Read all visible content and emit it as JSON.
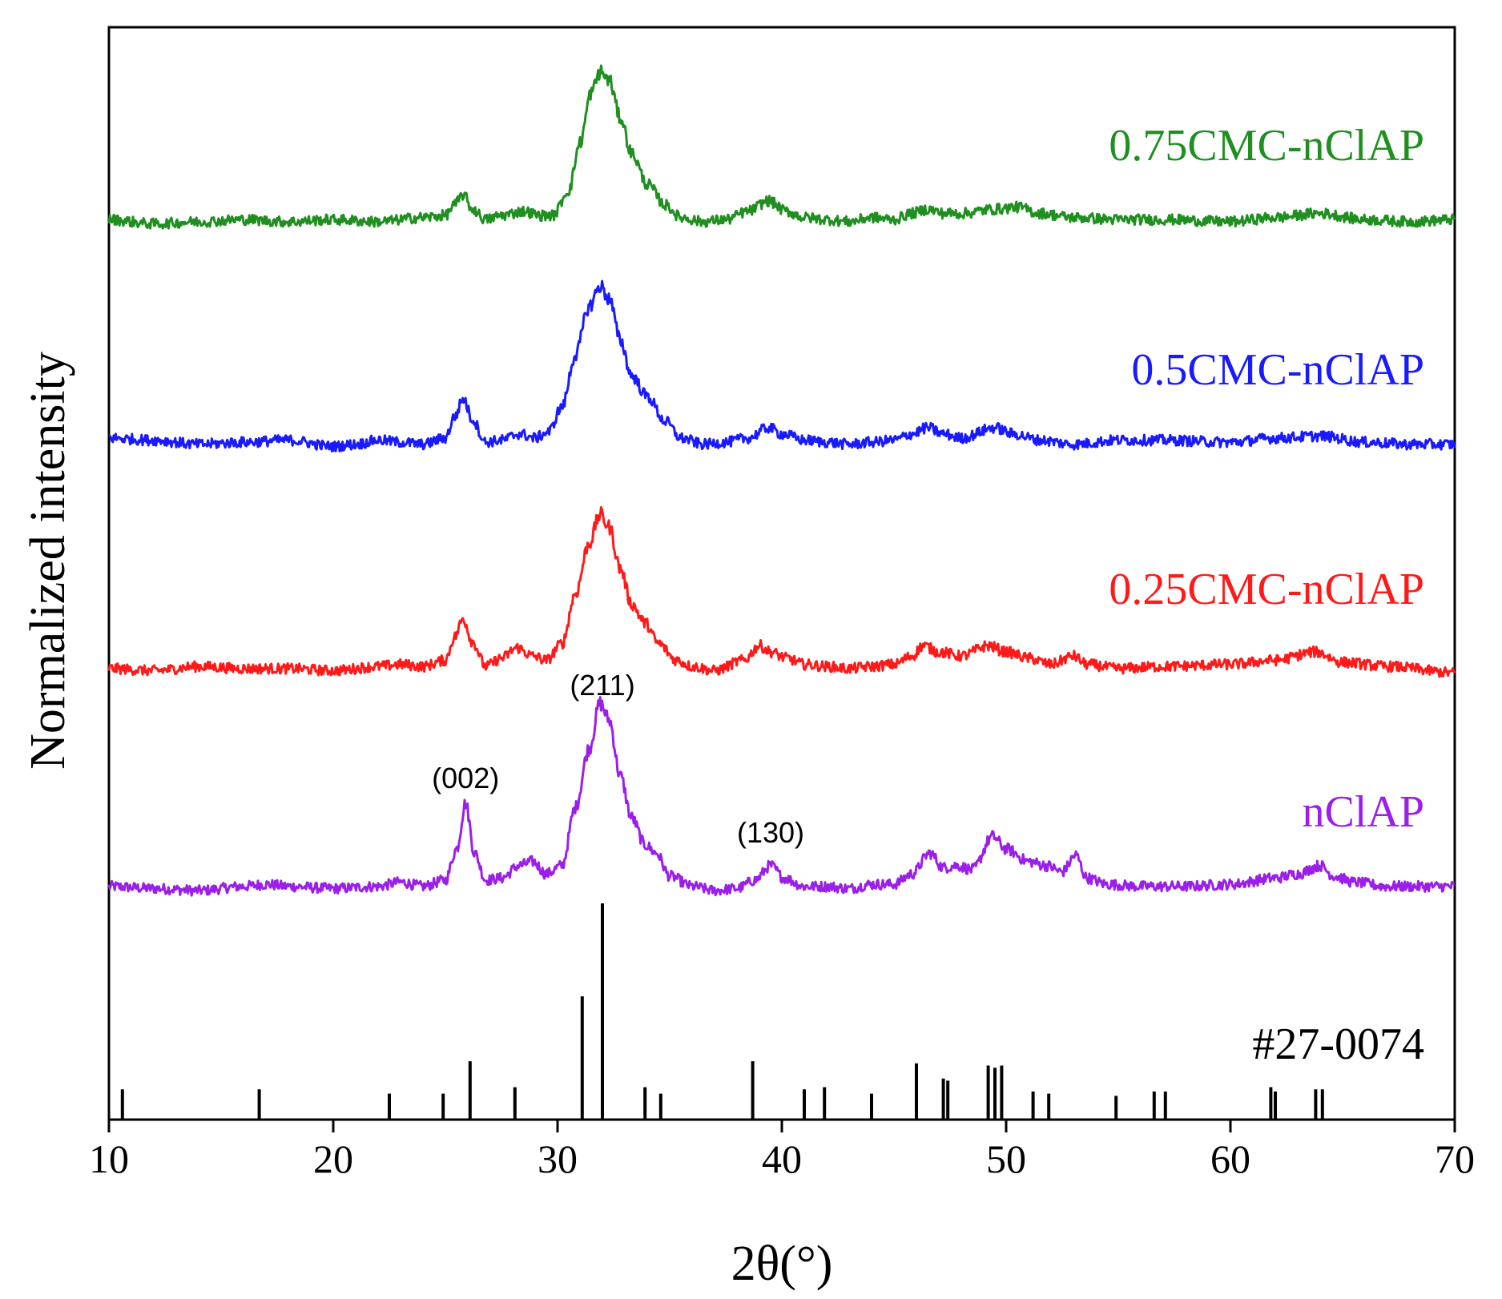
{
  "chart_data": {
    "type": "line",
    "title": "",
    "xlabel": "2θ(°)",
    "ylabel": "Normalized intensity",
    "xlim": [
      10,
      70
    ],
    "xticks": [
      10,
      20,
      30,
      40,
      50,
      60,
      70
    ],
    "xtick_labels": [
      "10",
      "20",
      "30",
      "40",
      "50",
      "60",
      "70"
    ],
    "grid": false,
    "series": [
      {
        "name": "nClAP",
        "color": "#9b1fe8",
        "baseline": 0.0,
        "points": [
          [
            10,
            0.02
          ],
          [
            12,
            0.01
          ],
          [
            14,
            0.0
          ],
          [
            16,
            0.02
          ],
          [
            17,
            0.03
          ],
          [
            18,
            0.02
          ],
          [
            20,
            0.01
          ],
          [
            22,
            0.02
          ],
          [
            23,
            0.04
          ],
          [
            24,
            0.02
          ],
          [
            25,
            0.05
          ],
          [
            25.5,
            0.2
          ],
          [
            25.9,
            0.42
          ],
          [
            26.3,
            0.18
          ],
          [
            26.8,
            0.05
          ],
          [
            27.5,
            0.06
          ],
          [
            28.3,
            0.12
          ],
          [
            28.9,
            0.14
          ],
          [
            29.5,
            0.08
          ],
          [
            30.2,
            0.12
          ],
          [
            30.8,
            0.4
          ],
          [
            31.4,
            0.68
          ],
          [
            31.9,
            0.9
          ],
          [
            32.3,
            0.82
          ],
          [
            32.8,
            0.55
          ],
          [
            33.3,
            0.35
          ],
          [
            33.9,
            0.22
          ],
          [
            34.4,
            0.18
          ],
          [
            35,
            0.07
          ],
          [
            36,
            0.02
          ],
          [
            37,
            0.0
          ],
          [
            38,
            0.01
          ],
          [
            38.8,
            0.05
          ],
          [
            39.5,
            0.12
          ],
          [
            40.1,
            0.06
          ],
          [
            41,
            0.02
          ],
          [
            42,
            0.02
          ],
          [
            43,
            0.01
          ],
          [
            44,
            0.03
          ],
          [
            45,
            0.03
          ],
          [
            45.8,
            0.08
          ],
          [
            46.6,
            0.18
          ],
          [
            47.2,
            0.11
          ],
          [
            47.8,
            0.12
          ],
          [
            48.5,
            0.1
          ],
          [
            49.4,
            0.26
          ],
          [
            50,
            0.2
          ],
          [
            51,
            0.14
          ],
          [
            51.8,
            0.12
          ],
          [
            52.5,
            0.09
          ],
          [
            53.1,
            0.17
          ],
          [
            53.6,
            0.06
          ],
          [
            54.5,
            0.03
          ],
          [
            56,
            0.02
          ],
          [
            58,
            0.02
          ],
          [
            60,
            0.03
          ],
          [
            62,
            0.06
          ],
          [
            63,
            0.08
          ],
          [
            64,
            0.12
          ],
          [
            64.6,
            0.07
          ],
          [
            65.5,
            0.04
          ],
          [
            67,
            0.02
          ],
          [
            70,
            0.02
          ]
        ]
      },
      {
        "name": "0.25CMC-nClAP",
        "color": "#ff1a1a",
        "baseline": 1.0,
        "points": [
          [
            10,
            0.02
          ],
          [
            12,
            0.01
          ],
          [
            14,
            0.03
          ],
          [
            16,
            0.02
          ],
          [
            18,
            0.02
          ],
          [
            20,
            0.01
          ],
          [
            22,
            0.03
          ],
          [
            23,
            0.04
          ],
          [
            24,
            0.03
          ],
          [
            25,
            0.06
          ],
          [
            25.4,
            0.17
          ],
          [
            25.8,
            0.26
          ],
          [
            26.2,
            0.15
          ],
          [
            26.8,
            0.03
          ],
          [
            27.5,
            0.07
          ],
          [
            28.2,
            0.12
          ],
          [
            28.9,
            0.08
          ],
          [
            29.5,
            0.06
          ],
          [
            30.2,
            0.14
          ],
          [
            30.8,
            0.38
          ],
          [
            31.4,
            0.62
          ],
          [
            31.9,
            0.76
          ],
          [
            32.3,
            0.7
          ],
          [
            32.8,
            0.5
          ],
          [
            33.3,
            0.33
          ],
          [
            33.9,
            0.24
          ],
          [
            34.5,
            0.14
          ],
          [
            35.3,
            0.06
          ],
          [
            36,
            0.03
          ],
          [
            37,
            0.01
          ],
          [
            38.3,
            0.06
          ],
          [
            39,
            0.13
          ],
          [
            39.5,
            0.1
          ],
          [
            40.2,
            0.07
          ],
          [
            41,
            0.04
          ],
          [
            42,
            0.03
          ],
          [
            43,
            0.02
          ],
          [
            44,
            0.03
          ],
          [
            45,
            0.04
          ],
          [
            45.8,
            0.08
          ],
          [
            46.3,
            0.13
          ],
          [
            47,
            0.1
          ],
          [
            48,
            0.08
          ],
          [
            49.2,
            0.13
          ],
          [
            50,
            0.1
          ],
          [
            51,
            0.07
          ],
          [
            52,
            0.04
          ],
          [
            53,
            0.08
          ],
          [
            53.6,
            0.04
          ],
          [
            55,
            0.02
          ],
          [
            57,
            0.03
          ],
          [
            60,
            0.04
          ],
          [
            62,
            0.06
          ],
          [
            63.8,
            0.1
          ],
          [
            65,
            0.05
          ],
          [
            67,
            0.03
          ],
          [
            70,
            0.0
          ]
        ]
      },
      {
        "name": "0.5CMC-nClAP",
        "color": "#1a1aff",
        "baseline": 2.0,
        "points": [
          [
            10,
            0.05
          ],
          [
            12,
            0.04
          ],
          [
            14,
            0.02
          ],
          [
            16,
            0.03
          ],
          [
            18,
            0.04
          ],
          [
            20,
            0.01
          ],
          [
            21,
            0.02
          ],
          [
            22,
            0.04
          ],
          [
            23,
            0.03
          ],
          [
            24,
            0.02
          ],
          [
            25,
            0.05
          ],
          [
            25.4,
            0.15
          ],
          [
            25.8,
            0.24
          ],
          [
            26.2,
            0.14
          ],
          [
            26.8,
            0.03
          ],
          [
            27.5,
            0.04
          ],
          [
            28.3,
            0.07
          ],
          [
            29,
            0.05
          ],
          [
            29.6,
            0.08
          ],
          [
            30.2,
            0.2
          ],
          [
            30.8,
            0.45
          ],
          [
            31.4,
            0.68
          ],
          [
            31.9,
            0.78
          ],
          [
            32.3,
            0.72
          ],
          [
            32.8,
            0.52
          ],
          [
            33.3,
            0.35
          ],
          [
            34,
            0.25
          ],
          [
            34.8,
            0.13
          ],
          [
            35.5,
            0.05
          ],
          [
            36.5,
            0.02
          ],
          [
            37.5,
            0.03
          ],
          [
            38.5,
            0.05
          ],
          [
            39.4,
            0.1
          ],
          [
            40,
            0.07
          ],
          [
            41,
            0.04
          ],
          [
            42,
            0.03
          ],
          [
            43,
            0.02
          ],
          [
            44,
            0.03
          ],
          [
            45,
            0.04
          ],
          [
            45.8,
            0.07
          ],
          [
            46.5,
            0.1
          ],
          [
            47.2,
            0.07
          ],
          [
            48,
            0.05
          ],
          [
            49.5,
            0.1
          ],
          [
            50.3,
            0.07
          ],
          [
            51.5,
            0.04
          ],
          [
            53,
            0.02
          ],
          [
            55,
            0.04
          ],
          [
            57,
            0.04
          ],
          [
            60,
            0.03
          ],
          [
            62,
            0.05
          ],
          [
            64,
            0.06
          ],
          [
            66,
            0.03
          ],
          [
            68,
            0.02
          ],
          [
            70,
            0.02
          ]
        ]
      },
      {
        "name": "0.75CMC-nClAP",
        "color": "#1f8f1f",
        "baseline": 3.0,
        "points": [
          [
            10,
            0.03
          ],
          [
            12,
            0.01
          ],
          [
            14,
            0.02
          ],
          [
            16,
            0.03
          ],
          [
            18,
            0.02
          ],
          [
            20,
            0.03
          ],
          [
            22,
            0.02
          ],
          [
            24,
            0.04
          ],
          [
            25,
            0.05
          ],
          [
            25.4,
            0.1
          ],
          [
            25.8,
            0.15
          ],
          [
            26.2,
            0.08
          ],
          [
            26.8,
            0.03
          ],
          [
            27.5,
            0.05
          ],
          [
            28.5,
            0.07
          ],
          [
            29.2,
            0.05
          ],
          [
            29.8,
            0.05
          ],
          [
            30.5,
            0.17
          ],
          [
            31,
            0.4
          ],
          [
            31.5,
            0.64
          ],
          [
            31.9,
            0.74
          ],
          [
            32.3,
            0.7
          ],
          [
            32.8,
            0.52
          ],
          [
            33.3,
            0.35
          ],
          [
            34,
            0.2
          ],
          [
            34.8,
            0.1
          ],
          [
            35.5,
            0.04
          ],
          [
            36.5,
            0.02
          ],
          [
            37.5,
            0.03
          ],
          [
            38.5,
            0.07
          ],
          [
            39.4,
            0.12
          ],
          [
            40.2,
            0.07
          ],
          [
            41,
            0.04
          ],
          [
            42,
            0.03
          ],
          [
            43,
            0.02
          ],
          [
            44,
            0.04
          ],
          [
            45,
            0.03
          ],
          [
            45.8,
            0.06
          ],
          [
            46.5,
            0.08
          ],
          [
            47.2,
            0.06
          ],
          [
            48,
            0.06
          ],
          [
            49.5,
            0.08
          ],
          [
            50.5,
            0.09
          ],
          [
            51.5,
            0.06
          ],
          [
            53,
            0.04
          ],
          [
            55,
            0.03
          ],
          [
            57,
            0.03
          ],
          [
            60,
            0.02
          ],
          [
            62,
            0.04
          ],
          [
            64,
            0.06
          ],
          [
            66,
            0.03
          ],
          [
            68,
            0.02
          ],
          [
            70,
            0.03
          ]
        ]
      }
    ],
    "series_label_positions": [
      "right"
    ],
    "peak_annotations": [
      {
        "label": "(002)",
        "x": 25.9,
        "series": "nClAP"
      },
      {
        "label": "(211)",
        "x": 32.0,
        "series": "nClAP"
      },
      {
        "label": "(130)",
        "x": 39.5,
        "series": "nClAP"
      }
    ],
    "reference": {
      "label": "#27-0074",
      "peaks": [
        [
          10.6,
          0.14
        ],
        [
          16.7,
          0.14
        ],
        [
          22.5,
          0.12
        ],
        [
          24.9,
          0.12
        ],
        [
          26.1,
          0.27
        ],
        [
          28.1,
          0.15
        ],
        [
          31.1,
          0.57
        ],
        [
          32.0,
          1.0
        ],
        [
          33.9,
          0.15
        ],
        [
          34.6,
          0.12
        ],
        [
          38.7,
          0.27
        ],
        [
          41.0,
          0.14
        ],
        [
          41.9,
          0.15
        ],
        [
          44.0,
          0.12
        ],
        [
          46.0,
          0.26
        ],
        [
          47.2,
          0.19
        ],
        [
          47.4,
          0.18
        ],
        [
          49.2,
          0.25
        ],
        [
          49.5,
          0.24
        ],
        [
          49.8,
          0.25
        ],
        [
          51.2,
          0.13
        ],
        [
          51.9,
          0.12
        ],
        [
          54.9,
          0.11
        ],
        [
          56.6,
          0.13
        ],
        [
          57.1,
          0.13
        ],
        [
          61.8,
          0.15
        ],
        [
          62.0,
          0.13
        ],
        [
          63.8,
          0.14
        ],
        [
          64.1,
          0.14
        ]
      ]
    }
  }
}
